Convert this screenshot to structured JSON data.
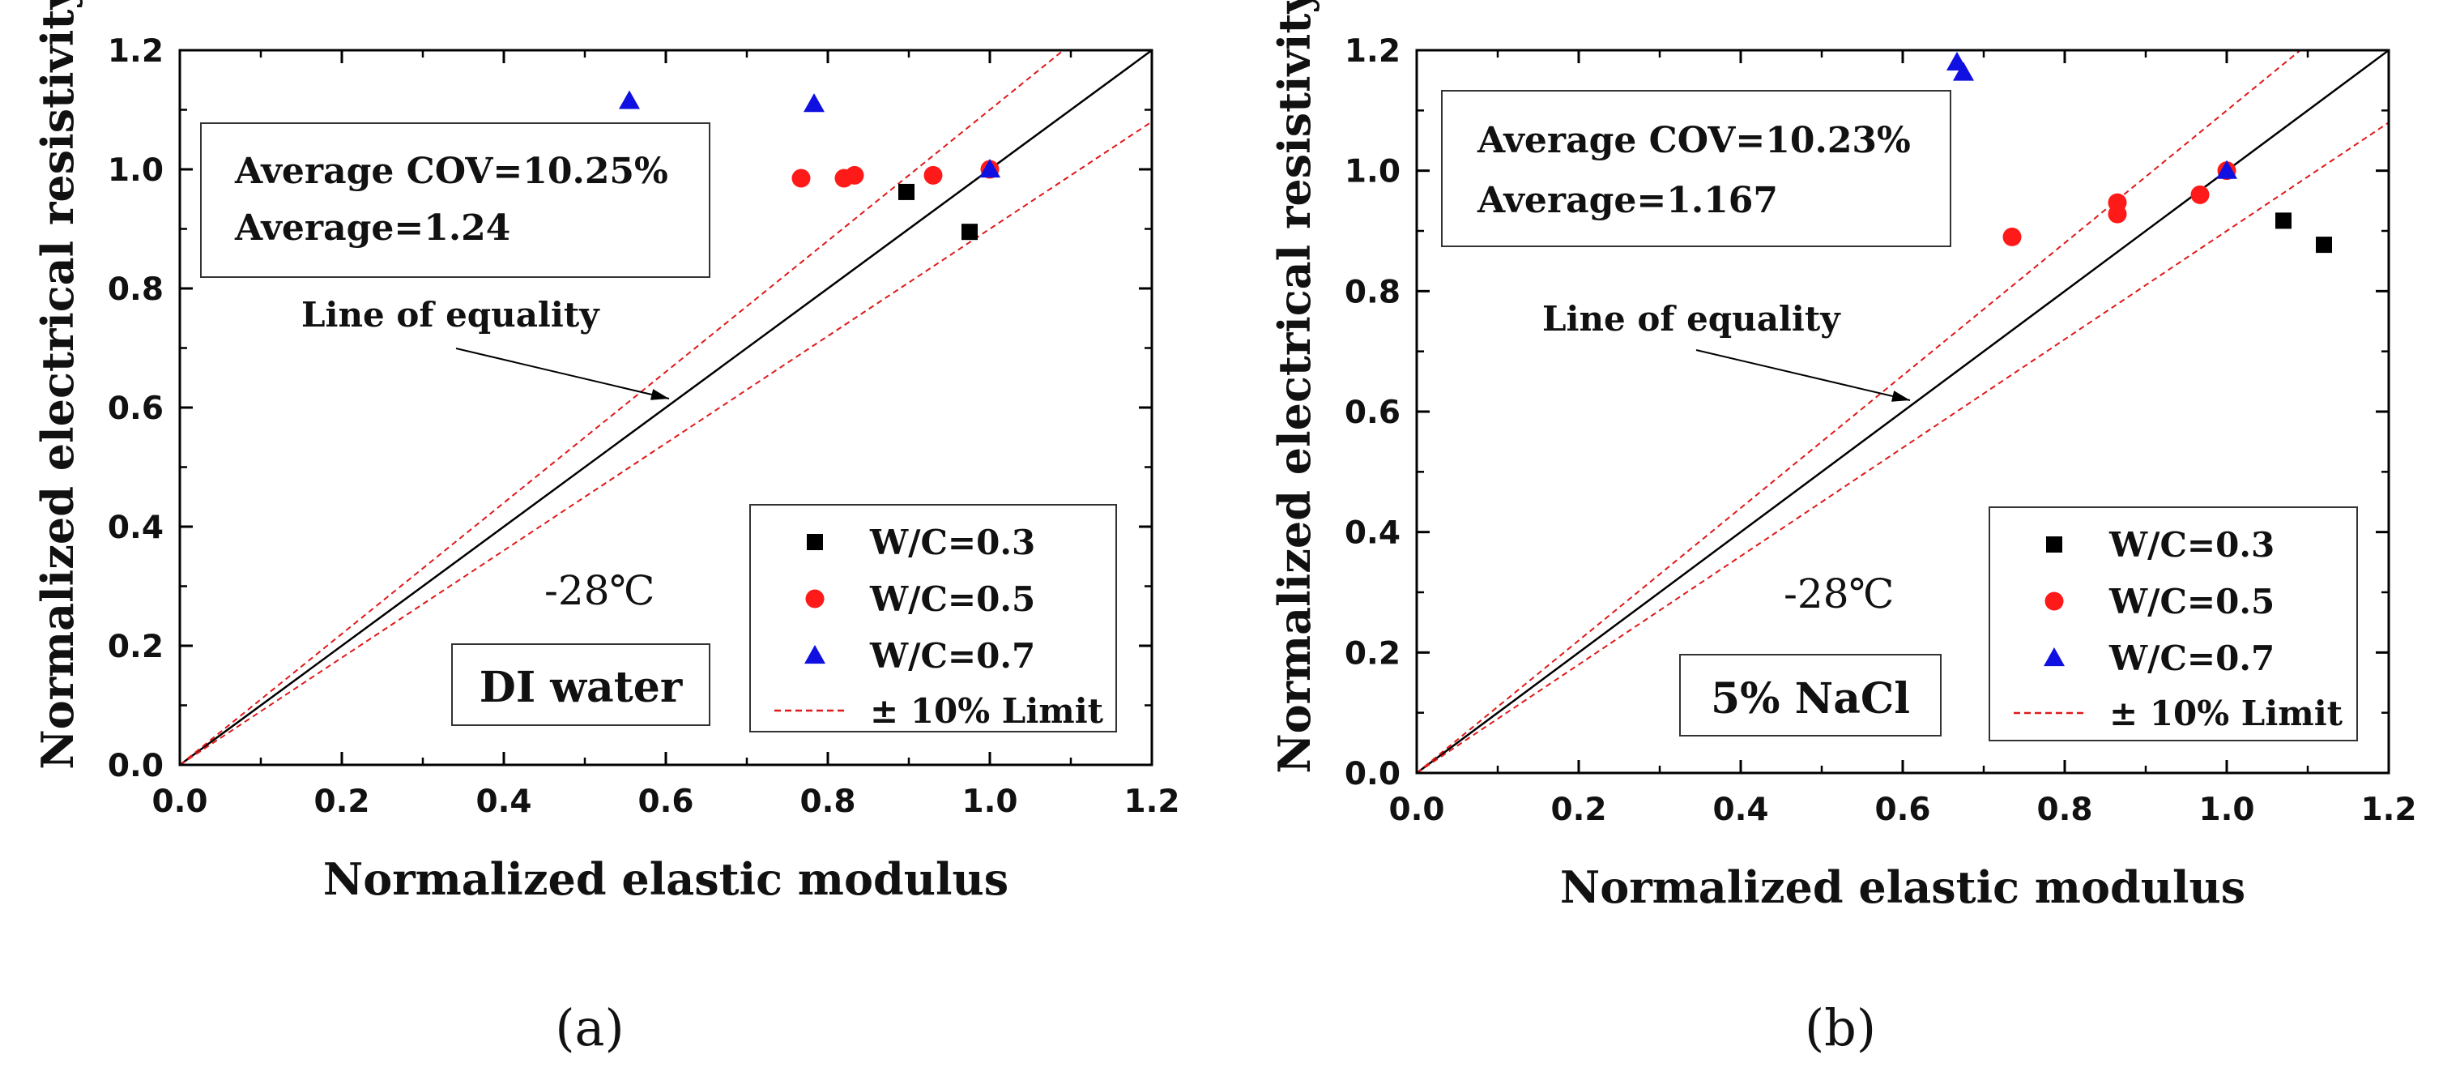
{
  "chart_data": [
    {
      "type": "scatter",
      "panel_label": "(a)",
      "xlabel": "Normalized elastic modulus",
      "ylabel": "Normalized electrical resistivity",
      "xlim": [
        0.0,
        1.2
      ],
      "ylim": [
        0.0,
        1.2
      ],
      "xticks": [
        "0.0",
        "0.2",
        "0.4",
        "0.6",
        "0.8",
        "1.0",
        "1.2"
      ],
      "yticks": [
        "0.0",
        "0.2",
        "0.4",
        "0.6",
        "0.8",
        "1.0",
        "1.2"
      ],
      "stats": [
        "Average COV=10.25%",
        "Average=1.24"
      ],
      "equality_label": "Line of equality",
      "temperature": "-28℃",
      "solution": "DI water",
      "legend_position": "bottom-right",
      "lines": [
        {
          "name": "Line of equality",
          "slope": 1.0
        },
        {
          "name": "+10% Limit",
          "slope": 1.1
        },
        {
          "name": "-10% Limit",
          "slope": 0.9
        }
      ],
      "series": [
        {
          "name": "W/C=0.3",
          "marker": "square",
          "color": "#000000",
          "points": [
            [
              0.897,
              0.962
            ],
            [
              0.975,
              0.895
            ]
          ]
        },
        {
          "name": "W/C=0.5",
          "marker": "circle",
          "color": "#ff1a1a",
          "points": [
            [
              0.767,
              0.985
            ],
            [
              0.82,
              0.985
            ],
            [
              0.833,
              0.99
            ],
            [
              0.93,
              0.99
            ],
            [
              1.0,
              1.0
            ]
          ]
        },
        {
          "name": "W/C=0.7",
          "marker": "triangle",
          "color": "#1010e0",
          "points": [
            [
              0.555,
              1.115
            ],
            [
              0.783,
              1.11
            ],
            [
              1.0,
              1.0
            ]
          ]
        }
      ],
      "limit_legend": "± 10% Limit"
    },
    {
      "type": "scatter",
      "panel_label": "(b)",
      "xlabel": "Normalized elastic modulus",
      "ylabel": "Normalized electrical resistivity",
      "xlim": [
        0.0,
        1.2
      ],
      "ylim": [
        0.0,
        1.2
      ],
      "xticks": [
        "0.0",
        "0.2",
        "0.4",
        "0.6",
        "0.8",
        "1.0",
        "1.2"
      ],
      "yticks": [
        "0.0",
        "0.2",
        "0.4",
        "0.6",
        "0.8",
        "1.0",
        "1.2"
      ],
      "stats": [
        "Average COV=10.23%",
        "Average=1.167"
      ],
      "equality_label": "Line of equality",
      "temperature": "-28℃",
      "solution": "5% NaCl",
      "legend_position": "bottom-right",
      "lines": [
        {
          "name": "Line of equality",
          "slope": 1.0
        },
        {
          "name": "+10% Limit",
          "slope": 1.1
        },
        {
          "name": "-10% Limit",
          "slope": 0.9
        }
      ],
      "series": [
        {
          "name": "W/C=0.3",
          "marker": "square",
          "color": "#000000",
          "points": [
            [
              1.07,
              0.917
            ],
            [
              1.12,
              0.877
            ]
          ]
        },
        {
          "name": "W/C=0.5",
          "marker": "circle",
          "color": "#ff1a1a",
          "points": [
            [
              0.735,
              0.89
            ],
            [
              0.865,
              0.947
            ],
            [
              0.865,
              0.928
            ],
            [
              0.967,
              0.96
            ],
            [
              1.0,
              1.0
            ]
          ]
        },
        {
          "name": "W/C=0.7",
          "marker": "triangle",
          "color": "#1010e0",
          "points": [
            [
              0.667,
              1.18
            ],
            [
              0.675,
              1.163
            ],
            [
              1.0,
              1.0
            ]
          ]
        }
      ],
      "limit_legend": "± 10% Limit"
    }
  ]
}
